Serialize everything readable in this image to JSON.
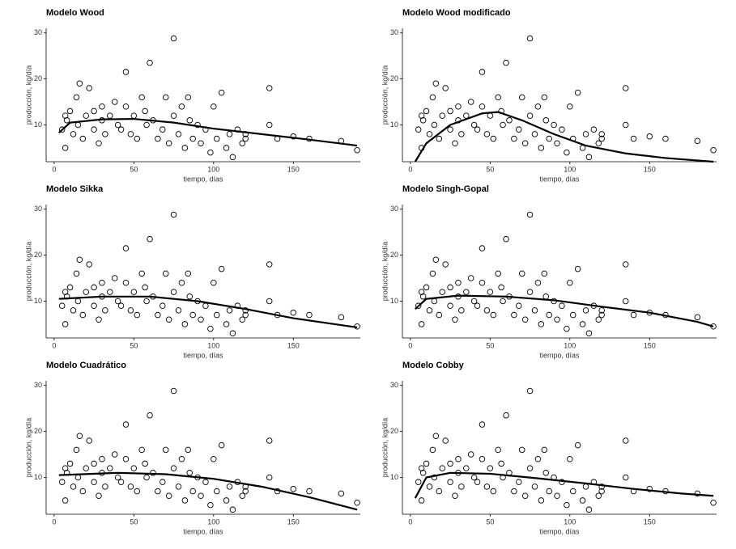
{
  "chart_data": [
    {
      "type": "scatter",
      "title": "Modelo Wood",
      "xlabel": "tiempo, días",
      "ylabel": "producción, kg/día",
      "xlim": [
        -5,
        192
      ],
      "ylim": [
        2,
        31
      ],
      "xticks": [
        0,
        50,
        100,
        150
      ],
      "yticks": [
        10,
        20,
        30
      ],
      "color": "#000000",
      "points": {
        "x": [
          5,
          7,
          7,
          8,
          10,
          12,
          14,
          15,
          16,
          18,
          20,
          22,
          25,
          25,
          28,
          30,
          30,
          32,
          35,
          38,
          40,
          42,
          45,
          45,
          48,
          50,
          52,
          55,
          57,
          58,
          60,
          62,
          65,
          68,
          70,
          72,
          75,
          75,
          78,
          80,
          82,
          84,
          85,
          87,
          90,
          92,
          95,
          98,
          100,
          102,
          105,
          108,
          110,
          112,
          115,
          118,
          120,
          120,
          135,
          135,
          140,
          150,
          160,
          180,
          190
        ],
        "y": [
          9,
          12,
          5,
          11,
          13,
          8,
          16,
          10,
          19,
          7,
          12,
          18,
          9,
          13,
          6,
          14,
          11,
          8,
          12,
          15,
          10,
          9,
          21.5,
          14,
          8,
          12,
          7,
          16,
          13,
          10,
          23.5,
          11,
          7,
          9,
          16,
          6,
          28.8,
          12,
          8,
          14,
          5,
          16,
          11,
          7,
          10,
          6,
          9,
          4,
          14,
          7,
          17,
          5,
          8,
          3,
          9,
          6,
          8,
          7,
          18,
          10,
          7,
          7.5,
          7,
          6.5,
          4.5
        ]
      },
      "curve": {
        "x": [
          3,
          10,
          30,
          50,
          75,
          100,
          130,
          160,
          190
        ],
        "y": [
          8.3,
          10.5,
          11.2,
          11.3,
          10.5,
          9.2,
          8,
          6.8,
          5.5
        ]
      }
    },
    {
      "type": "scatter",
      "title": "Modelo Wood modificado",
      "xlabel": "tiempo, días",
      "ylabel": "producción, kg/día",
      "xlim": [
        -5,
        192
      ],
      "ylim": [
        2,
        31
      ],
      "xticks": [
        0,
        50,
        100,
        150
      ],
      "yticks": [
        10,
        20,
        30
      ],
      "color": "#000000",
      "points": {
        "x": [
          5,
          7,
          7,
          8,
          10,
          12,
          14,
          15,
          16,
          18,
          20,
          22,
          25,
          25,
          28,
          30,
          30,
          32,
          35,
          38,
          40,
          42,
          45,
          45,
          48,
          50,
          52,
          55,
          57,
          58,
          60,
          62,
          65,
          68,
          70,
          72,
          75,
          75,
          78,
          80,
          82,
          84,
          85,
          87,
          90,
          92,
          95,
          98,
          100,
          102,
          105,
          108,
          110,
          112,
          115,
          118,
          120,
          120,
          135,
          135,
          140,
          150,
          160,
          180,
          190
        ],
        "y": [
          9,
          12,
          5,
          11,
          13,
          8,
          16,
          10,
          19,
          7,
          12,
          18,
          9,
          13,
          6,
          14,
          11,
          8,
          12,
          15,
          10,
          9,
          21.5,
          14,
          8,
          12,
          7,
          16,
          13,
          10,
          23.5,
          11,
          7,
          9,
          16,
          6,
          28.8,
          12,
          8,
          14,
          5,
          16,
          11,
          7,
          10,
          6,
          9,
          4,
          14,
          7,
          17,
          5,
          8,
          3,
          9,
          6,
          8,
          7,
          18,
          10,
          7,
          7.5,
          7,
          6.5,
          4.5
        ]
      },
      "curve": {
        "x": [
          3,
          10,
          25,
          45,
          55,
          70,
          90,
          110,
          135,
          160,
          190
        ],
        "y": [
          2,
          6,
          10,
          12.5,
          12.8,
          11,
          8,
          5.5,
          3.8,
          2.8,
          2
        ]
      }
    },
    {
      "type": "scatter",
      "title": "Modelo Sikka",
      "xlabel": "tiempo, días",
      "ylabel": "producción, kg/día",
      "xlim": [
        -5,
        192
      ],
      "ylim": [
        2,
        31
      ],
      "xticks": [
        0,
        50,
        100,
        150
      ],
      "yticks": [
        10,
        20,
        30
      ],
      "color": "#000000",
      "points": {
        "x": [
          5,
          7,
          7,
          8,
          10,
          12,
          14,
          15,
          16,
          18,
          20,
          22,
          25,
          25,
          28,
          30,
          30,
          32,
          35,
          38,
          40,
          42,
          45,
          45,
          48,
          50,
          52,
          55,
          57,
          58,
          60,
          62,
          65,
          68,
          70,
          72,
          75,
          75,
          78,
          80,
          82,
          84,
          85,
          87,
          90,
          92,
          95,
          98,
          100,
          102,
          105,
          108,
          110,
          112,
          115,
          118,
          120,
          120,
          135,
          135,
          140,
          150,
          160,
          180,
          190
        ],
        "y": [
          9,
          12,
          5,
          11,
          13,
          8,
          16,
          10,
          19,
          7,
          12,
          18,
          9,
          13,
          6,
          14,
          11,
          8,
          12,
          15,
          10,
          9,
          21.5,
          14,
          8,
          12,
          7,
          16,
          13,
          10,
          23.5,
          11,
          7,
          9,
          16,
          6,
          28.8,
          12,
          8,
          14,
          5,
          16,
          11,
          7,
          10,
          6,
          9,
          4,
          14,
          7,
          17,
          5,
          8,
          3,
          9,
          6,
          8,
          7,
          18,
          10,
          7,
          7.5,
          7,
          6.5,
          4.5
        ]
      },
      "curve": {
        "x": [
          3,
          30,
          60,
          90,
          120,
          150,
          190
        ],
        "y": [
          10.5,
          11,
          11,
          10,
          8.3,
          6.3,
          4.3
        ]
      }
    },
    {
      "type": "scatter",
      "title": "Modelo Singh-Gopal",
      "xlabel": "tiempo, días",
      "ylabel": "producción, kg/día",
      "xlim": [
        -5,
        192
      ],
      "ylim": [
        2,
        31
      ],
      "xticks": [
        0,
        50,
        100,
        150
      ],
      "yticks": [
        10,
        20,
        30
      ],
      "color": "#000000",
      "points": {
        "x": [
          5,
          7,
          7,
          8,
          10,
          12,
          14,
          15,
          16,
          18,
          20,
          22,
          25,
          25,
          28,
          30,
          30,
          32,
          35,
          38,
          40,
          42,
          45,
          45,
          48,
          50,
          52,
          55,
          57,
          58,
          60,
          62,
          65,
          68,
          70,
          72,
          75,
          75,
          78,
          80,
          82,
          84,
          85,
          87,
          90,
          92,
          95,
          98,
          100,
          102,
          105,
          108,
          110,
          112,
          115,
          118,
          120,
          120,
          135,
          135,
          140,
          150,
          160,
          180,
          190
        ],
        "y": [
          9,
          12,
          5,
          11,
          13,
          8,
          16,
          10,
          19,
          7,
          12,
          18,
          9,
          13,
          6,
          14,
          11,
          8,
          12,
          15,
          10,
          9,
          21.5,
          14,
          8,
          12,
          7,
          16,
          13,
          10,
          23.5,
          11,
          7,
          9,
          16,
          6,
          28.8,
          12,
          8,
          14,
          5,
          16,
          11,
          7,
          10,
          6,
          9,
          4,
          14,
          7,
          17,
          5,
          8,
          3,
          9,
          6,
          8,
          7,
          18,
          10,
          7,
          7.5,
          7,
          6.5,
          4.5
        ]
      },
      "curve": {
        "x": [
          3,
          10,
          30,
          60,
          90,
          120,
          150,
          180,
          190
        ],
        "y": [
          8.3,
          10.5,
          11.2,
          11,
          10.2,
          8.8,
          7.5,
          5.5,
          4.5
        ]
      }
    },
    {
      "type": "scatter",
      "title": "Modelo Cuadrático",
      "xlabel": "tiempo, días",
      "ylabel": "producción, kg/día",
      "xlim": [
        -5,
        192
      ],
      "ylim": [
        2,
        31
      ],
      "xticks": [
        0,
        50,
        100,
        150
      ],
      "yticks": [
        10,
        20,
        30
      ],
      "color": "#000000",
      "points": {
        "x": [
          5,
          7,
          7,
          8,
          10,
          12,
          14,
          15,
          16,
          18,
          20,
          22,
          25,
          25,
          28,
          30,
          30,
          32,
          35,
          38,
          40,
          42,
          45,
          45,
          48,
          50,
          52,
          55,
          57,
          58,
          60,
          62,
          65,
          68,
          70,
          72,
          75,
          75,
          78,
          80,
          82,
          84,
          85,
          87,
          90,
          92,
          95,
          98,
          100,
          102,
          105,
          108,
          110,
          112,
          115,
          118,
          120,
          120,
          135,
          135,
          140,
          150,
          160,
          180,
          190
        ],
        "y": [
          9,
          12,
          5,
          11,
          13,
          8,
          16,
          10,
          19,
          7,
          12,
          18,
          9,
          13,
          6,
          14,
          11,
          8,
          12,
          15,
          10,
          9,
          21.5,
          14,
          8,
          12,
          7,
          16,
          13,
          10,
          23.5,
          11,
          7,
          9,
          16,
          6,
          28.8,
          12,
          8,
          14,
          5,
          16,
          11,
          7,
          10,
          6,
          9,
          4,
          14,
          7,
          17,
          5,
          8,
          3,
          9,
          6,
          8,
          7,
          18,
          10,
          7,
          7.5,
          7,
          6.5,
          4.5
        ]
      },
      "curve": {
        "x": [
          3,
          40,
          70,
          100,
          130,
          160,
          190
        ],
        "y": [
          10.5,
          11,
          10.7,
          9.7,
          8,
          5.7,
          3
        ]
      }
    },
    {
      "type": "scatter",
      "title": "Modelo Cobby",
      "xlabel": "tiempo, días",
      "ylabel": "producción, kg/día",
      "xlim": [
        -5,
        192
      ],
      "ylim": [
        2,
        31
      ],
      "xticks": [
        0,
        50,
        100,
        150
      ],
      "yticks": [
        10,
        20,
        30
      ],
      "color": "#000000",
      "points": {
        "x": [
          5,
          7,
          7,
          8,
          10,
          12,
          14,
          15,
          16,
          18,
          20,
          22,
          25,
          25,
          28,
          30,
          30,
          32,
          35,
          38,
          40,
          42,
          45,
          45,
          48,
          50,
          52,
          55,
          57,
          58,
          60,
          62,
          65,
          68,
          70,
          72,
          75,
          75,
          78,
          80,
          82,
          84,
          85,
          87,
          90,
          92,
          95,
          98,
          100,
          102,
          105,
          108,
          110,
          112,
          115,
          118,
          120,
          120,
          135,
          135,
          140,
          150,
          160,
          180,
          190
        ],
        "y": [
          9,
          12,
          5,
          11,
          13,
          8,
          16,
          10,
          19,
          7,
          12,
          18,
          9,
          13,
          6,
          14,
          11,
          8,
          12,
          15,
          10,
          9,
          21.5,
          14,
          8,
          12,
          7,
          16,
          13,
          10,
          23.5,
          11,
          7,
          9,
          16,
          6,
          28.8,
          12,
          8,
          14,
          5,
          16,
          11,
          7,
          10,
          6,
          9,
          4,
          14,
          7,
          17,
          5,
          8,
          3,
          9,
          6,
          8,
          7,
          18,
          10,
          7,
          7.5,
          7,
          6.5,
          4.5
        ]
      },
      "curve": {
        "x": [
          3,
          10,
          25,
          50,
          80,
          110,
          140,
          170,
          190
        ],
        "y": [
          5.5,
          10,
          11,
          10.8,
          9.8,
          8.7,
          7.5,
          6.5,
          6
        ]
      }
    }
  ]
}
